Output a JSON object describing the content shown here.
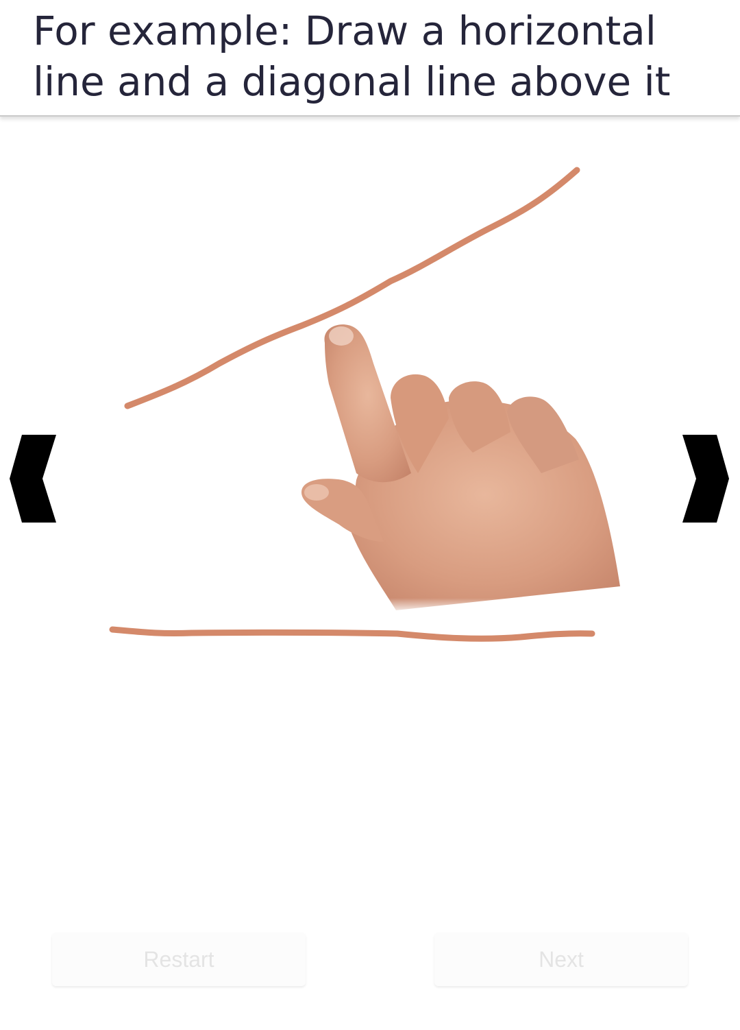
{
  "header": {
    "instruction": "For example: Draw a horizontal line and a diagonal line above it"
  },
  "illustration": {
    "stroke_color": "#d4896a",
    "hand": "pointing-hand-icon"
  },
  "navigation": {
    "prev_icon": "chevron-left-icon",
    "next_icon": "chevron-right-icon"
  },
  "buttons": {
    "restart_label": "Restart",
    "next_label": "Next"
  }
}
